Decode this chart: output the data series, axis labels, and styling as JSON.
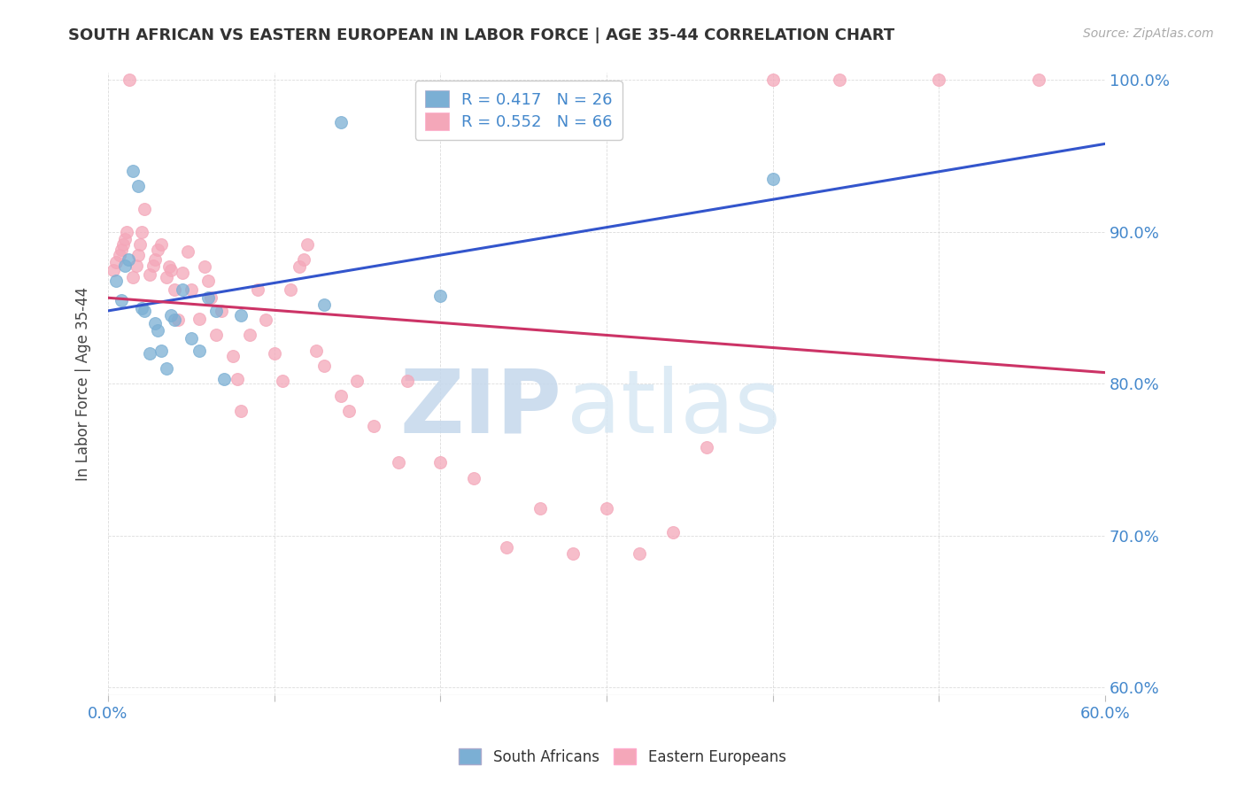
{
  "title": "SOUTH AFRICAN VS EASTERN EUROPEAN IN LABOR FORCE | AGE 35-44 CORRELATION CHART",
  "source": "Source: ZipAtlas.com",
  "ylabel": "In Labor Force | Age 35-44",
  "xlim": [
    0.0,
    0.6
  ],
  "ylim": [
    0.595,
    1.005
  ],
  "xticks": [
    0.0,
    0.1,
    0.2,
    0.3,
    0.4,
    0.5,
    0.6
  ],
  "yticks": [
    0.6,
    0.7,
    0.8,
    0.9,
    1.0
  ],
  "yticklabels": [
    "60.0%",
    "70.0%",
    "80.0%",
    "90.0%",
    "100.0%"
  ],
  "blue_color": "#7bafd4",
  "pink_color": "#f4a7b9",
  "blue_line_color": "#3355cc",
  "pink_line_color": "#cc3366",
  "blue_R": 0.417,
  "blue_N": 26,
  "pink_R": 0.552,
  "pink_N": 66,
  "south_african_x": [
    0.005,
    0.008,
    0.01,
    0.012,
    0.015,
    0.018,
    0.02,
    0.022,
    0.025,
    0.028,
    0.03,
    0.032,
    0.035,
    0.038,
    0.04,
    0.045,
    0.05,
    0.055,
    0.06,
    0.065,
    0.07,
    0.08,
    0.13,
    0.14,
    0.2,
    0.4
  ],
  "south_african_y": [
    0.868,
    0.855,
    0.878,
    0.882,
    0.94,
    0.93,
    0.85,
    0.848,
    0.82,
    0.84,
    0.835,
    0.822,
    0.81,
    0.845,
    0.842,
    0.862,
    0.83,
    0.822,
    0.857,
    0.848,
    0.803,
    0.845,
    0.852,
    0.972,
    0.858,
    0.935
  ],
  "eastern_european_x": [
    0.003,
    0.005,
    0.007,
    0.008,
    0.009,
    0.01,
    0.011,
    0.013,
    0.015,
    0.017,
    0.018,
    0.019,
    0.02,
    0.022,
    0.025,
    0.027,
    0.028,
    0.03,
    0.032,
    0.035,
    0.037,
    0.038,
    0.04,
    0.042,
    0.045,
    0.048,
    0.05,
    0.055,
    0.058,
    0.06,
    0.062,
    0.065,
    0.068,
    0.075,
    0.078,
    0.08,
    0.085,
    0.09,
    0.095,
    0.1,
    0.105,
    0.11,
    0.115,
    0.118,
    0.12,
    0.125,
    0.13,
    0.14,
    0.145,
    0.15,
    0.16,
    0.175,
    0.18,
    0.2,
    0.22,
    0.24,
    0.26,
    0.28,
    0.3,
    0.32,
    0.34,
    0.36,
    0.4,
    0.44,
    0.5,
    0.56
  ],
  "eastern_european_y": [
    0.875,
    0.88,
    0.885,
    0.888,
    0.892,
    0.895,
    0.9,
    1.0,
    0.87,
    0.878,
    0.885,
    0.892,
    0.9,
    0.915,
    0.872,
    0.878,
    0.882,
    0.888,
    0.892,
    0.87,
    0.877,
    0.875,
    0.862,
    0.842,
    0.873,
    0.887,
    0.862,
    0.843,
    0.877,
    0.868,
    0.857,
    0.832,
    0.848,
    0.818,
    0.803,
    0.782,
    0.832,
    0.862,
    0.842,
    0.82,
    0.802,
    0.862,
    0.877,
    0.882,
    0.892,
    0.822,
    0.812,
    0.792,
    0.782,
    0.802,
    0.772,
    0.748,
    0.802,
    0.748,
    0.738,
    0.692,
    0.718,
    0.688,
    0.718,
    0.688,
    0.702,
    0.758,
    1.0,
    1.0,
    1.0,
    1.0
  ]
}
